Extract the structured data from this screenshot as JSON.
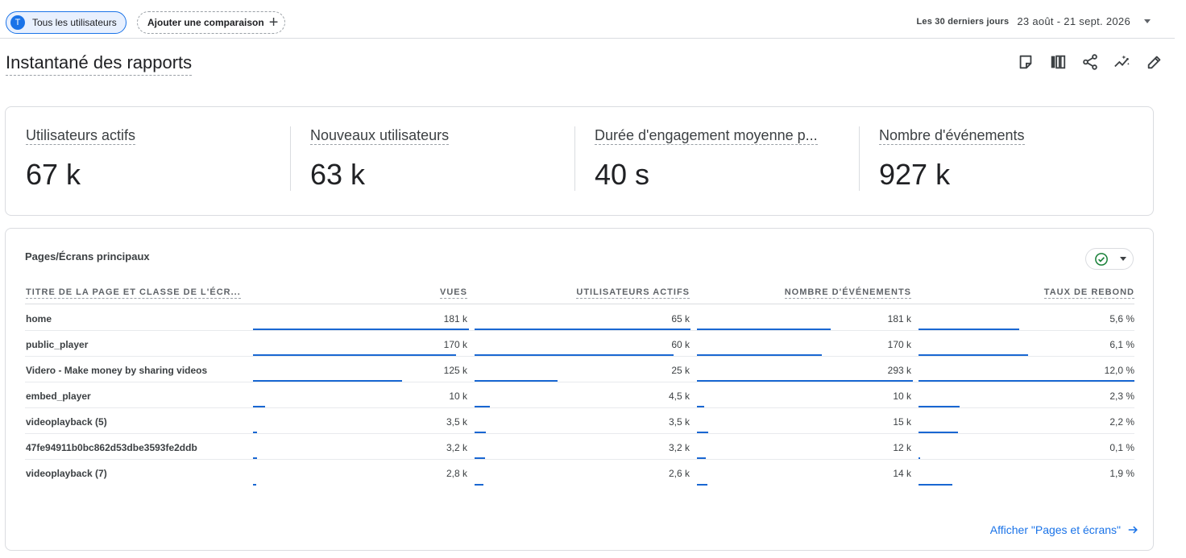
{
  "header": {
    "users_chip": {
      "avatar_letter": "T",
      "label": "Tous les utilisateurs"
    },
    "compare_chip": {
      "label": "Ajouter une comparaison",
      "icon": "plus-icon"
    },
    "date_range": {
      "label": "Les 30 derniers jours",
      "value": "23 août - 21 sept. 2026",
      "icon": "caret-down-icon"
    }
  },
  "page": {
    "title": "Instantané des rapports",
    "tools": [
      "note-icon",
      "compare-columns-icon",
      "share-icon",
      "insights-icon",
      "edit-icon"
    ]
  },
  "metrics": [
    {
      "label": "Utilisateurs actifs",
      "value": "67 k"
    },
    {
      "label": "Nouveaux utilisateurs",
      "value": "63 k"
    },
    {
      "label": "Durée d'engagement moyenne p...",
      "value": "40 s"
    },
    {
      "label": "Nombre d'événements",
      "value": "927 k"
    }
  ],
  "table": {
    "title": "Pages/Écrans principaux",
    "status_icon": "check-circle-icon",
    "columns": [
      "TITRE DE LA PAGE ET CLASSE DE L'ÉCR...",
      "VUES",
      "UTILISATEURS ACTIFS",
      "NOMBRE D'ÉVÉNEMENTS",
      "TAUX DE REBOND"
    ],
    "rows": [
      {
        "name": "home",
        "views": "181 k",
        "users": "65 k",
        "events": "181 k",
        "bounce": "5,6 %"
      },
      {
        "name": "public_player",
        "views": "170 k",
        "users": "60 k",
        "events": "170 k",
        "bounce": "6,1 %"
      },
      {
        "name": "Videro - Make money by sharing videos",
        "views": "125 k",
        "users": "25 k",
        "events": "293 k",
        "bounce": "12,0 %"
      },
      {
        "name": "embed_player",
        "views": "10 k",
        "users": "4,5 k",
        "events": "10 k",
        "bounce": "2,3 %"
      },
      {
        "name": "videoplayback (5)",
        "views": "3,5 k",
        "users": "3,5 k",
        "events": "15 k",
        "bounce": "2,2 %"
      },
      {
        "name": "47fe94911b0bc862d53dbe3593fe2ddb",
        "views": "3,2 k",
        "users": "3,2 k",
        "events": "12 k",
        "bounce": "0,1 %"
      },
      {
        "name": "videoplayback (7)",
        "views": "2,8 k",
        "users": "2,6 k",
        "events": "14 k",
        "bounce": "1,9 %"
      }
    ],
    "link": {
      "label": "Afficher \"Pages et écrans\"",
      "icon": "arrow-right-icon"
    }
  },
  "colors": {
    "accent": "#1a73e8",
    "bar": "#1967d2",
    "check": "#188038"
  }
}
